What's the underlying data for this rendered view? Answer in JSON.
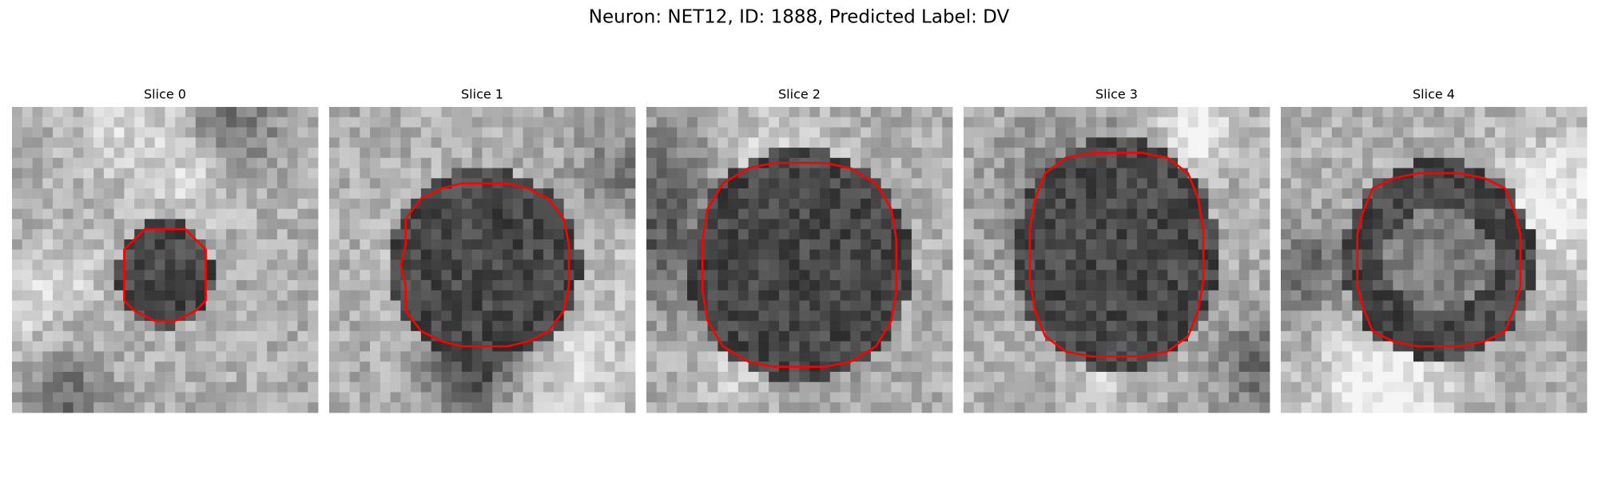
{
  "header": {
    "title": "Neuron: NET12, ID: 1888, Predicted Label: DV"
  },
  "panels": [
    {
      "title": "Slice 0"
    },
    {
      "title": "Slice 1"
    },
    {
      "title": "Slice 2"
    },
    {
      "title": "Slice 3"
    },
    {
      "title": "Slice 4"
    }
  ]
}
